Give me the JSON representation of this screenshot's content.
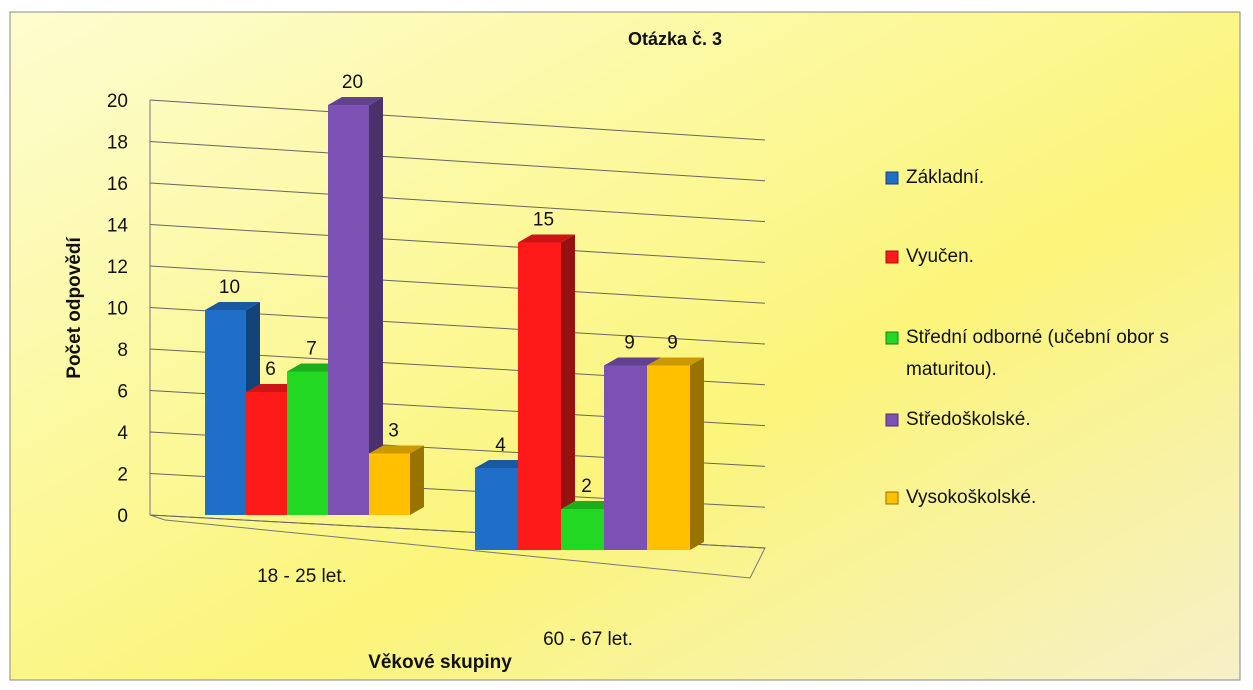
{
  "chart_data": {
    "type": "bar3d",
    "title": "Otázka č. 3",
    "y_label": "Počet odpovědí",
    "x_label": "Věkové skupiny",
    "categories": [
      "18 - 25 let.",
      "60 - 67 let."
    ],
    "series": [
      {
        "name": "Základní.",
        "color": "#1f6fc9",
        "values": [
          10,
          4
        ]
      },
      {
        "name": "Vyučen.",
        "color": "#ff1a1a",
        "values": [
          6,
          15
        ]
      },
      {
        "name": "Střední odborné (učební obor s maturitou).",
        "color": "#22d822",
        "values": [
          7,
          2
        ]
      },
      {
        "name": "Středoškolské.",
        "color": "#7b52b4",
        "values": [
          20,
          9
        ]
      },
      {
        "name": "Vysokoškolské.",
        "color": "#ffc000",
        "values": [
          3,
          9
        ]
      }
    ],
    "ylim": [
      0,
      20
    ],
    "yticks": [
      0,
      2,
      4,
      6,
      8,
      10,
      12,
      14,
      16,
      18,
      20
    ],
    "grid": true
  }
}
